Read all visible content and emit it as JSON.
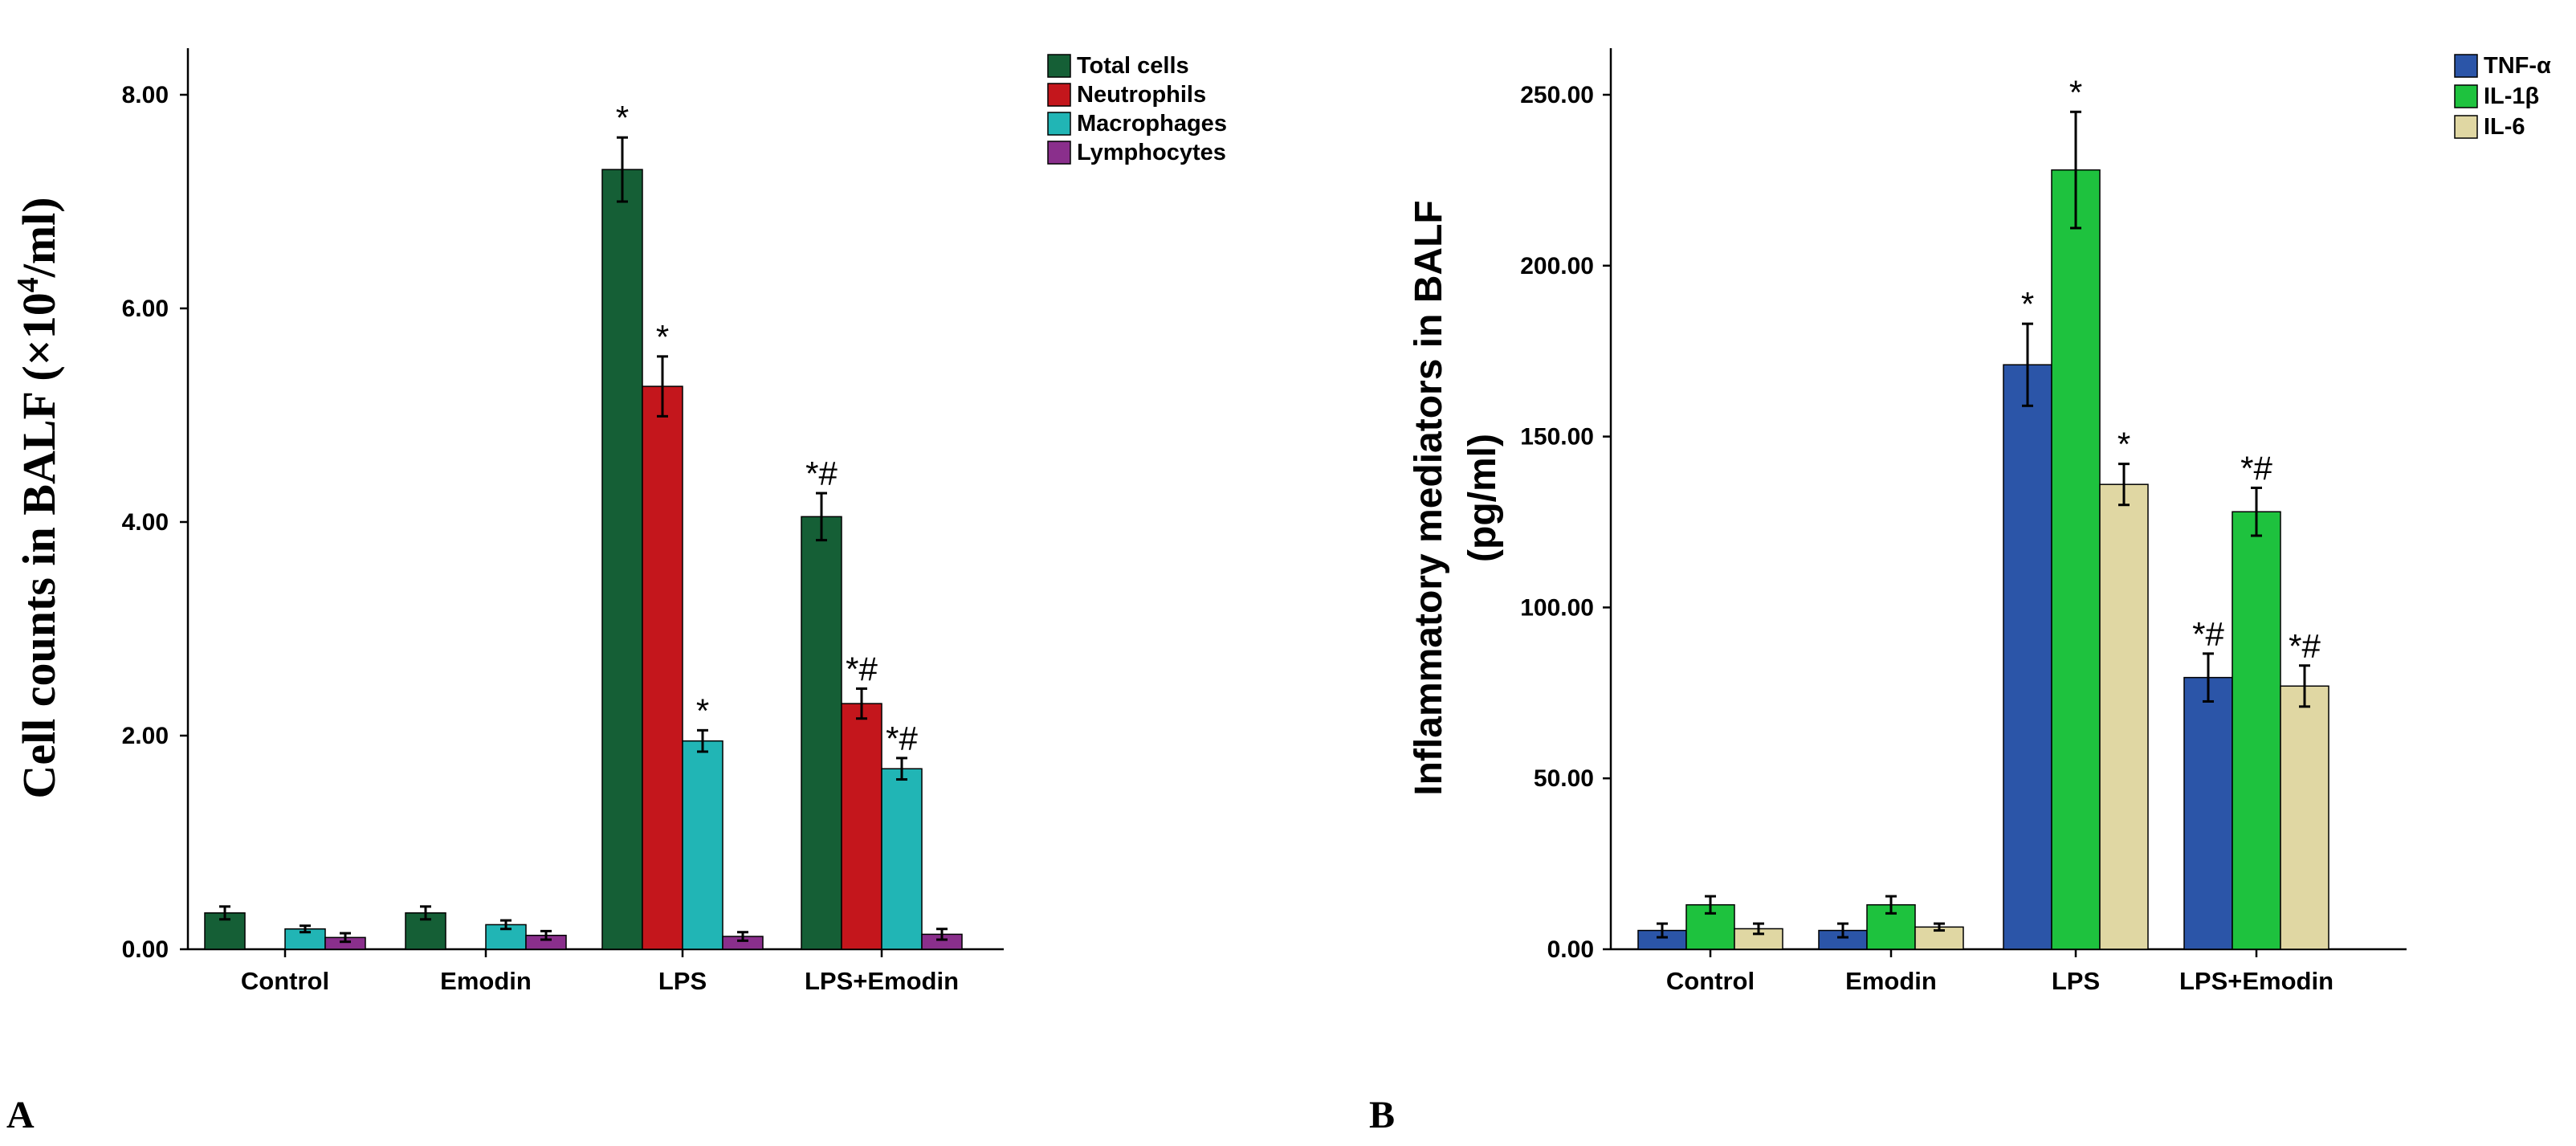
{
  "chart_data": [
    {
      "type": "bar",
      "panel": "A",
      "ylabel": "Cell counts in BALF (×10",
      "ylabel_sup": "4",
      "ylabel_tail": "/ml)",
      "ylim": [
        0,
        8
      ],
      "yticks": [
        "0.00",
        "2.00",
        "4.00",
        "6.00",
        "8.00"
      ],
      "categories": [
        "Control",
        "Emodin",
        "LPS",
        "LPS+Emodin"
      ],
      "series": [
        {
          "name": "Total cells",
          "color": "#155f36",
          "values": [
            0.34,
            0.34,
            7.3,
            4.05
          ],
          "errors": [
            0.06,
            0.06,
            0.3,
            0.22
          ],
          "annotations": [
            "",
            "",
            "*",
            "*#"
          ]
        },
        {
          "name": "Neutrophils",
          "color": "#c4161c",
          "values": [
            0.0,
            0.0,
            5.27,
            2.3
          ],
          "errors": [
            0.0,
            0.0,
            0.28,
            0.14
          ],
          "annotations": [
            "",
            "",
            "*",
            "*#"
          ]
        },
        {
          "name": "Macrophages",
          "color": "#21b5b5",
          "values": [
            0.19,
            0.23,
            1.95,
            1.69
          ],
          "errors": [
            0.03,
            0.04,
            0.1,
            0.1
          ],
          "annotations": [
            "",
            "",
            "*",
            "*#"
          ]
        },
        {
          "name": "Lymphocytes",
          "color": "#8a2f8c",
          "values": [
            0.11,
            0.13,
            0.12,
            0.14
          ],
          "errors": [
            0.04,
            0.04,
            0.04,
            0.05
          ],
          "annotations": [
            "",
            "",
            "",
            ""
          ]
        }
      ]
    },
    {
      "type": "bar",
      "panel": "B",
      "ylabel": "Inflammatory mediators in BALF",
      "ylabel2": "(pg/ml)",
      "ylim": [
        0,
        250
      ],
      "yticks": [
        "0.00",
        "50.00",
        "100.00",
        "150.00",
        "200.00",
        "250.00"
      ],
      "categories": [
        "Control",
        "Emodin",
        "LPS",
        "LPS+Emodin"
      ],
      "series": [
        {
          "name": "TNF-α",
          "color": "#2b55a8",
          "values": [
            5.5,
            5.5,
            171,
            79.5
          ],
          "errors": [
            2.0,
            2.0,
            12,
            7
          ],
          "annotations": [
            "",
            "",
            "*",
            "*#"
          ]
        },
        {
          "name": "IL-1β",
          "color": "#1ec23e",
          "values": [
            13,
            13,
            228,
            128
          ],
          "errors": [
            2.5,
            2.5,
            17,
            7
          ],
          "annotations": [
            "",
            "",
            "*",
            "*#"
          ]
        },
        {
          "name": "IL-6",
          "color": "#e0d7a3",
          "values": [
            6,
            6.5,
            136,
            77
          ],
          "errors": [
            1.5,
            1.0,
            6,
            6
          ],
          "annotations": [
            "",
            "",
            "*",
            "*#"
          ]
        }
      ]
    }
  ]
}
